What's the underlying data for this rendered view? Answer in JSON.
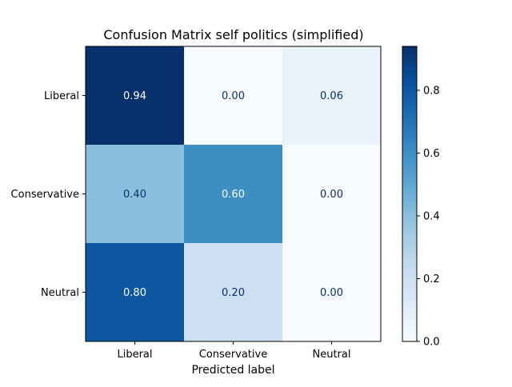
{
  "chart_data": {
    "type": "heatmap",
    "title": "Confusion Matrix self politics (simplified)",
    "xlabel": "Predicted label",
    "ylabel": "",
    "x_categories": [
      "Liberal",
      "Conservative",
      "Neutral"
    ],
    "y_categories": [
      "Liberal",
      "Conservative",
      "Neutral"
    ],
    "values": [
      [
        0.94,
        0.0,
        0.06
      ],
      [
        0.4,
        0.6,
        0.0
      ],
      [
        0.8,
        0.2,
        0.0
      ]
    ],
    "value_labels": [
      [
        "0.94",
        "0.00",
        "0.06"
      ],
      [
        "0.40",
        "0.60",
        "0.00"
      ],
      [
        "0.80",
        "0.20",
        "0.00"
      ]
    ],
    "colormap": "Blues",
    "colormap_stops": [
      "#f7fbff",
      "#deebf7",
      "#c6dbef",
      "#9ecae1",
      "#6baed6",
      "#4292c6",
      "#2171b5",
      "#08519c",
      "#08306b"
    ],
    "vmin": 0.0,
    "vmax": 0.94,
    "colorbar_ticks": [
      "0.0",
      "0.2",
      "0.4",
      "0.6",
      "0.8"
    ],
    "colorbar_tick_values": [
      0.0,
      0.2,
      0.4,
      0.6,
      0.8
    ],
    "grid": false,
    "legend": "colorbar right"
  }
}
